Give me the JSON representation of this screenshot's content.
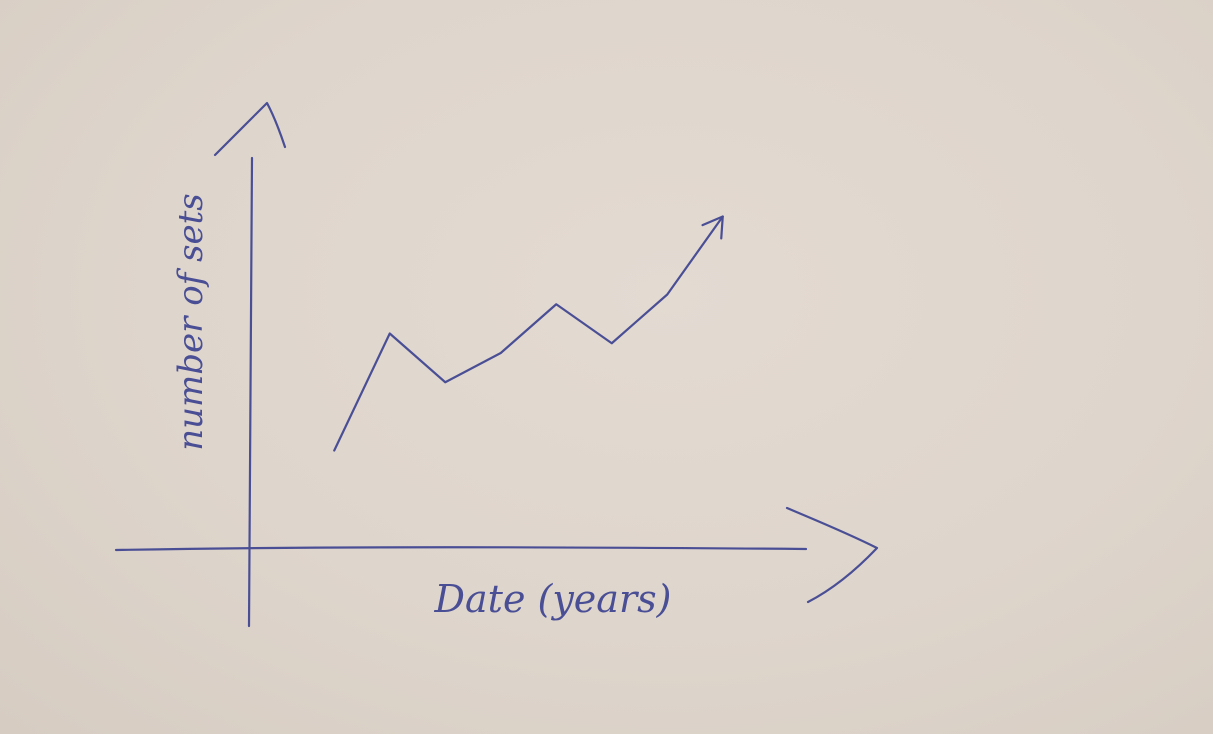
{
  "chart_data": {
    "type": "line",
    "title": "",
    "xlabel": "Date (years)",
    "ylabel": "number of sets",
    "x": [
      0,
      1,
      2,
      3,
      4,
      5,
      6,
      7
    ],
    "series": [
      {
        "values": [
          10,
          22,
          17,
          20,
          25,
          21,
          26,
          34
        ]
      }
    ],
    "xlim": [
      -1.5,
      8.5
    ],
    "ylim": [
      0,
      40
    ],
    "grid": false,
    "tick_labels": false,
    "legend": "none",
    "last_point_arrow": true,
    "colors": {
      "ink": "#4a4f95",
      "paper": "#ddd3ca"
    }
  }
}
